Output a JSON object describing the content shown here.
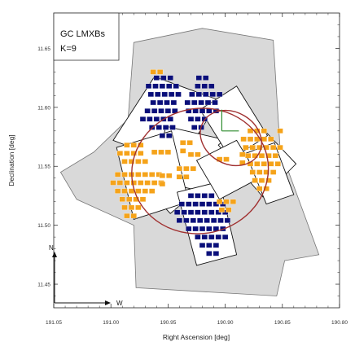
{
  "chart_data": {
    "type": "scatter",
    "title": "",
    "legend": {
      "line1": "GC LMXBs",
      "line2": "K=9",
      "placement": "top-left"
    },
    "xlabel": "Right Ascension [deg]",
    "ylabel": "Declination [deg]",
    "xlim": [
      191.05,
      190.8
    ],
    "ylim": [
      11.43,
      11.68
    ],
    "xaxis_reversed": true,
    "grid": false,
    "x_ticks": [
      "191.05",
      "191.00",
      "190.95",
      "190.90",
      "190.85",
      "190.80"
    ],
    "y_ticks": [
      "11.45",
      "11.50",
      "11.55",
      "11.60",
      "11.65"
    ],
    "compass": {
      "north": "N",
      "west": "W"
    },
    "colors": {
      "coverage": "#d9d9d9",
      "fields": "#ffffff",
      "high_density": "#0a0f7a",
      "low_density": "#f5a31a",
      "ellipses": "#a03030",
      "marker": "#2e8b2e"
    },
    "coverage_region": [
      [
        190.98,
        11.655
      ],
      [
        190.92,
        11.667
      ],
      [
        190.858,
        11.657
      ],
      [
        190.852,
        11.565
      ],
      [
        190.818,
        11.475
      ],
      [
        190.848,
        11.47
      ],
      [
        190.855,
        11.44
      ],
      [
        190.978,
        11.447
      ],
      [
        190.98,
        11.5
      ],
      [
        191.03,
        11.522
      ],
      [
        191.044,
        11.545
      ],
      [
        191.015,
        11.562
      ],
      [
        190.985,
        11.59
      ]
    ],
    "fields": [
      [
        [
          190.988,
          11.552
        ],
        [
          190.948,
          11.51
        ],
        [
          190.897,
          11.552
        ],
        [
          190.938,
          11.594
        ]
      ],
      [
        [
          190.998,
          11.572
        ],
        [
          190.962,
          11.626
        ],
        [
          190.905,
          11.606
        ],
        [
          190.941,
          11.551
        ]
      ],
      [
        [
          190.962,
          11.538
        ],
        [
          190.908,
          11.526
        ],
        [
          190.898,
          11.572
        ],
        [
          190.952,
          11.584
        ]
      ],
      [
        [
          190.995,
          11.566
        ],
        [
          190.98,
          11.505
        ],
        [
          190.932,
          11.52
        ],
        [
          190.947,
          11.58
        ]
      ],
      [
        [
          190.942,
          11.528
        ],
        [
          190.925,
          11.466
        ],
        [
          190.89,
          11.475
        ],
        [
          190.905,
          11.537
        ]
      ],
      [
        [
          190.906,
          11.568
        ],
        [
          190.867,
          11.524
        ],
        [
          190.838,
          11.552
        ],
        [
          190.878,
          11.593
        ]
      ],
      [
        [
          190.922,
          11.598
        ],
        [
          190.895,
          11.556
        ],
        [
          190.863,
          11.576
        ],
        [
          190.89,
          11.618
        ]
      ],
      [
        [
          190.925,
          11.555
        ],
        [
          190.905,
          11.522
        ],
        [
          190.87,
          11.54
        ],
        [
          190.89,
          11.572
        ]
      ],
      [
        [
          190.882,
          11.561
        ],
        [
          190.864,
          11.518
        ],
        [
          190.84,
          11.526
        ],
        [
          190.857,
          11.57
        ]
      ]
    ],
    "series": [
      {
        "name": "",
        "values": [
          [
            190.96,
            11.625
          ],
          [
            190.954,
            11.625
          ],
          [
            190.948,
            11.625
          ],
          [
            190.923,
            11.625
          ],
          [
            190.917,
            11.625
          ],
          [
            190.967,
            11.618
          ],
          [
            190.961,
            11.618
          ],
          [
            190.955,
            11.618
          ],
          [
            190.949,
            11.618
          ],
          [
            190.943,
            11.618
          ],
          [
            190.924,
            11.618
          ],
          [
            190.918,
            11.618
          ],
          [
            190.912,
            11.618
          ],
          [
            190.965,
            11.611
          ],
          [
            190.959,
            11.611
          ],
          [
            190.953,
            11.611
          ],
          [
            190.947,
            11.611
          ],
          [
            190.941,
            11.611
          ],
          [
            190.929,
            11.611
          ],
          [
            190.923,
            11.611
          ],
          [
            190.917,
            11.611
          ],
          [
            190.911,
            11.611
          ],
          [
            190.905,
            11.611
          ],
          [
            190.963,
            11.604
          ],
          [
            190.957,
            11.604
          ],
          [
            190.951,
            11.604
          ],
          [
            190.945,
            11.604
          ],
          [
            190.933,
            11.604
          ],
          [
            190.927,
            11.604
          ],
          [
            190.921,
            11.604
          ],
          [
            190.915,
            11.604
          ],
          [
            190.909,
            11.604
          ],
          [
            190.968,
            11.597
          ],
          [
            190.962,
            11.597
          ],
          [
            190.956,
            11.597
          ],
          [
            190.95,
            11.597
          ],
          [
            190.944,
            11.597
          ],
          [
            190.932,
            11.597
          ],
          [
            190.926,
            11.597
          ],
          [
            190.92,
            11.597
          ],
          [
            190.914,
            11.597
          ],
          [
            190.908,
            11.597
          ],
          [
            190.972,
            11.59
          ],
          [
            190.966,
            11.59
          ],
          [
            190.96,
            11.59
          ],
          [
            190.954,
            11.59
          ],
          [
            190.948,
            11.59
          ],
          [
            190.93,
            11.59
          ],
          [
            190.924,
            11.59
          ],
          [
            190.918,
            11.59
          ],
          [
            190.964,
            11.583
          ],
          [
            190.958,
            11.583
          ],
          [
            190.952,
            11.583
          ],
          [
            190.946,
            11.583
          ],
          [
            190.927,
            11.583
          ],
          [
            190.921,
            11.583
          ],
          [
            190.955,
            11.576
          ],
          [
            190.949,
            11.576
          ],
          [
            190.93,
            11.525
          ],
          [
            190.924,
            11.525
          ],
          [
            190.918,
            11.525
          ],
          [
            190.912,
            11.525
          ],
          [
            190.938,
            11.518
          ],
          [
            190.932,
            11.518
          ],
          [
            190.926,
            11.518
          ],
          [
            190.92,
            11.518
          ],
          [
            190.914,
            11.518
          ],
          [
            190.908,
            11.518
          ],
          [
            190.902,
            11.518
          ],
          [
            190.942,
            11.511
          ],
          [
            190.936,
            11.511
          ],
          [
            190.93,
            11.511
          ],
          [
            190.924,
            11.511
          ],
          [
            190.918,
            11.511
          ],
          [
            190.912,
            11.511
          ],
          [
            190.906,
            11.511
          ],
          [
            190.9,
            11.511
          ],
          [
            190.94,
            11.504
          ],
          [
            190.934,
            11.504
          ],
          [
            190.928,
            11.504
          ],
          [
            190.922,
            11.504
          ],
          [
            190.916,
            11.504
          ],
          [
            190.91,
            11.504
          ],
          [
            190.904,
            11.504
          ],
          [
            190.898,
            11.504
          ],
          [
            190.932,
            11.497
          ],
          [
            190.926,
            11.497
          ],
          [
            190.92,
            11.497
          ],
          [
            190.914,
            11.497
          ],
          [
            190.908,
            11.497
          ],
          [
            190.902,
            11.497
          ],
          [
            190.924,
            11.49
          ],
          [
            190.918,
            11.49
          ],
          [
            190.912,
            11.49
          ],
          [
            190.906,
            11.49
          ],
          [
            190.9,
            11.49
          ],
          [
            190.92,
            11.483
          ],
          [
            190.914,
            11.483
          ],
          [
            190.908,
            11.483
          ],
          [
            190.914,
            11.476
          ],
          [
            190.908,
            11.476
          ]
        ]
      },
      {
        "name": "",
        "values": [
          [
            190.963,
            11.63
          ],
          [
            190.957,
            11.63
          ],
          [
            190.986,
            11.568
          ],
          [
            190.98,
            11.568
          ],
          [
            190.974,
            11.568
          ],
          [
            190.992,
            11.561
          ],
          [
            190.986,
            11.561
          ],
          [
            190.98,
            11.561
          ],
          [
            190.974,
            11.561
          ],
          [
            190.988,
            11.554
          ],
          [
            190.982,
            11.554
          ],
          [
            190.976,
            11.554
          ],
          [
            190.97,
            11.554
          ],
          [
            190.962,
            11.562
          ],
          [
            190.956,
            11.562
          ],
          [
            190.95,
            11.562
          ],
          [
            190.937,
            11.57
          ],
          [
            190.931,
            11.57
          ],
          [
            190.937,
            11.563
          ],
          [
            190.994,
            11.543
          ],
          [
            190.988,
            11.543
          ],
          [
            190.982,
            11.543
          ],
          [
            190.976,
            11.543
          ],
          [
            190.97,
            11.543
          ],
          [
            190.964,
            11.543
          ],
          [
            190.958,
            11.543
          ],
          [
            190.998,
            11.536
          ],
          [
            190.992,
            11.536
          ],
          [
            190.986,
            11.536
          ],
          [
            190.98,
            11.536
          ],
          [
            190.974,
            11.536
          ],
          [
            190.968,
            11.536
          ],
          [
            190.962,
            11.536
          ],
          [
            190.956,
            11.536
          ],
          [
            190.994,
            11.529
          ],
          [
            190.988,
            11.529
          ],
          [
            190.982,
            11.529
          ],
          [
            190.976,
            11.529
          ],
          [
            190.97,
            11.529
          ],
          [
            190.964,
            11.529
          ],
          [
            190.99,
            11.522
          ],
          [
            190.984,
            11.522
          ],
          [
            190.978,
            11.522
          ],
          [
            190.972,
            11.522
          ],
          [
            190.988,
            11.515
          ],
          [
            190.982,
            11.515
          ],
          [
            190.976,
            11.515
          ],
          [
            190.986,
            11.508
          ],
          [
            190.98,
            11.508
          ],
          [
            190.955,
            11.542
          ],
          [
            190.949,
            11.542
          ],
          [
            190.955,
            11.535
          ],
          [
            190.94,
            11.548
          ],
          [
            190.934,
            11.548
          ],
          [
            190.928,
            11.548
          ],
          [
            190.94,
            11.541
          ],
          [
            190.934,
            11.541
          ],
          [
            190.93,
            11.56
          ],
          [
            190.924,
            11.56
          ],
          [
            190.878,
            11.58
          ],
          [
            190.872,
            11.58
          ],
          [
            190.866,
            11.58
          ],
          [
            190.884,
            11.573
          ],
          [
            190.878,
            11.573
          ],
          [
            190.872,
            11.573
          ],
          [
            190.866,
            11.573
          ],
          [
            190.86,
            11.573
          ],
          [
            190.882,
            11.566
          ],
          [
            190.876,
            11.566
          ],
          [
            190.87,
            11.566
          ],
          [
            190.864,
            11.566
          ],
          [
            190.858,
            11.566
          ],
          [
            190.88,
            11.559
          ],
          [
            190.874,
            11.559
          ],
          [
            190.868,
            11.559
          ],
          [
            190.862,
            11.559
          ],
          [
            190.856,
            11.559
          ],
          [
            190.878,
            11.552
          ],
          [
            190.872,
            11.552
          ],
          [
            190.866,
            11.552
          ],
          [
            190.86,
            11.552
          ],
          [
            190.854,
            11.552
          ],
          [
            190.876,
            11.545
          ],
          [
            190.87,
            11.545
          ],
          [
            190.864,
            11.545
          ],
          [
            190.858,
            11.545
          ],
          [
            190.874,
            11.538
          ],
          [
            190.868,
            11.538
          ],
          [
            190.862,
            11.538
          ],
          [
            190.87,
            11.531
          ],
          [
            190.864,
            11.531
          ],
          [
            190.885,
            11.56
          ],
          [
            190.885,
            11.553
          ],
          [
            190.905,
            11.556
          ],
          [
            190.899,
            11.556
          ],
          [
            190.852,
            11.58
          ],
          [
            190.852,
            11.566
          ],
          [
            190.905,
            11.52
          ],
          [
            190.899,
            11.52
          ],
          [
            190.893,
            11.52
          ],
          [
            190.903,
            11.513
          ],
          [
            190.897,
            11.513
          ]
        ]
      }
    ],
    "ellipses": [
      {
        "cx": 190.922,
        "cy": 11.546,
        "rx": 0.06,
        "ry": 0.053,
        "angle": -12
      },
      {
        "cx": 190.895,
        "cy": 11.574,
        "rx": 0.028,
        "ry": 0.022,
        "angle": 30
      }
    ],
    "marker_lines": [
      [
        [
          190.903,
          11.58
        ],
        [
          190.903,
          11.598
        ]
      ],
      [
        [
          190.903,
          11.58
        ],
        [
          190.888,
          11.58
        ]
      ]
    ]
  }
}
